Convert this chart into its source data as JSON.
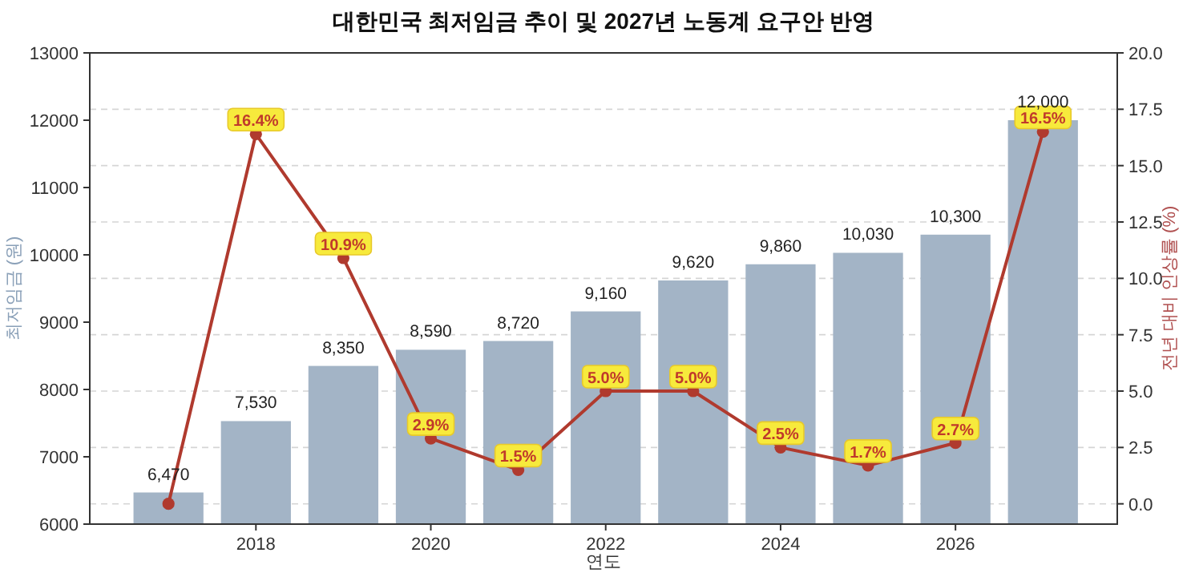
{
  "chart_data": {
    "type": "bar",
    "title": "대한민국 최저임금 추이 및 2027년 노동계 요구안 반영",
    "xlabel": "연도",
    "ylabel": "최저임금 (원)",
    "y2label": "전년 대비 인상률 (%)",
    "x": [
      2017,
      2018,
      2019,
      2020,
      2021,
      2022,
      2023,
      2024,
      2025,
      2026,
      2027
    ],
    "series": [
      {
        "color": "#a3b4c6",
        "values": [
          6470,
          7530,
          8350,
          8590,
          8720,
          9160,
          9620,
          9860,
          10030,
          10300,
          12000
        ],
        "value_labels": [
          "6,470",
          "7,530",
          "8,350",
          "8,590",
          "8,720",
          "9,160",
          "9,620",
          "9,860",
          "10,030",
          "10,300",
          "12,000"
        ]
      },
      {
        "type": "line",
        "axis": "y2",
        "color": "#b03a2e",
        "marker": "circle",
        "line_style": "solid",
        "values": [
          0.0,
          16.4,
          10.9,
          2.9,
          1.5,
          5.0,
          5.0,
          2.5,
          1.7,
          2.7,
          16.5
        ],
        "value_labels": [
          null,
          "16.4%",
          "10.9%",
          "2.9%",
          "1.5%",
          "5.0%",
          "5.0%",
          "2.5%",
          "1.7%",
          "2.7%",
          "16.5%"
        ]
      }
    ],
    "xlim": [
      2016.1,
      2027.85
    ],
    "xticks": [
      2018,
      2020,
      2022,
      2024,
      2026
    ],
    "ylim": [
      6000,
      13000
    ],
    "yticks": [
      6000,
      7000,
      8000,
      9000,
      10000,
      11000,
      12000,
      13000
    ],
    "y2lim": [
      -0.9,
      20
    ],
    "y2ticks": [
      {
        "value": 0,
        "label": "0.0"
      },
      {
        "value": 2.5,
        "label": "2.5"
      },
      {
        "value": 5,
        "label": "5.0"
      },
      {
        "value": 7.5,
        "label": "7.5"
      },
      {
        "value": 10,
        "label": "10.0"
      },
      {
        "value": 12.5,
        "label": "12.5"
      },
      {
        "value": 15,
        "label": "15.0"
      },
      {
        "value": 17.5,
        "label": "17.5"
      },
      {
        "value": 20,
        "label": "20.0"
      }
    ],
    "grid": "y"
  }
}
